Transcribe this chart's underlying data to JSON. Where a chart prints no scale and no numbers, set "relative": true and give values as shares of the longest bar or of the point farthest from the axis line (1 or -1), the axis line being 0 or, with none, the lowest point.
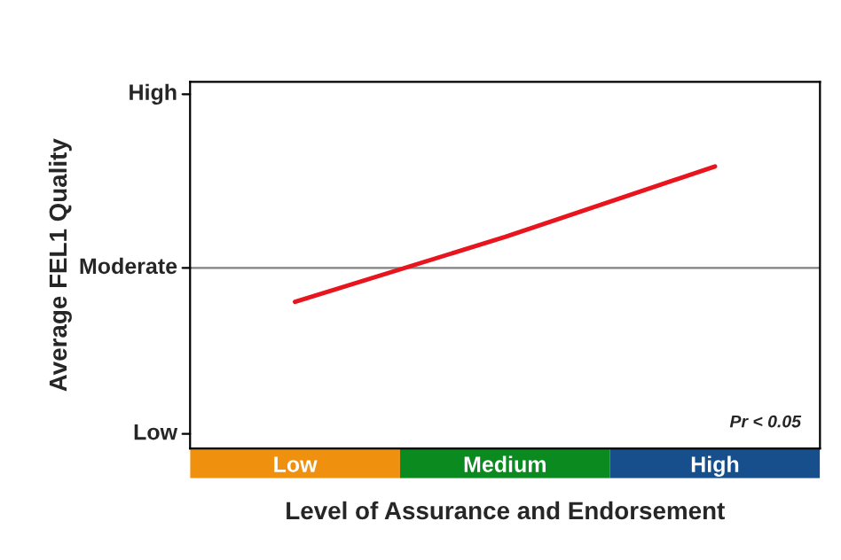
{
  "chart_data": {
    "type": "line",
    "relative": true,
    "xlabel": "Level of Assurance and Endorsement",
    "ylabel": "Average FEL1 Quality",
    "categories": [
      "Low",
      "Medium",
      "High"
    ],
    "series": [
      {
        "color": "#e8141e",
        "values": [
          0.52,
          0.75,
          1
        ]
      }
    ],
    "ref_lines": [
      {
        "axis": "y",
        "value": 0.64,
        "label": "Moderate",
        "color": "#808080"
      }
    ],
    "annotations": [
      "High",
      "Low",
      "Pr < 0.05"
    ],
    "grid": false,
    "legend": false
  }
}
